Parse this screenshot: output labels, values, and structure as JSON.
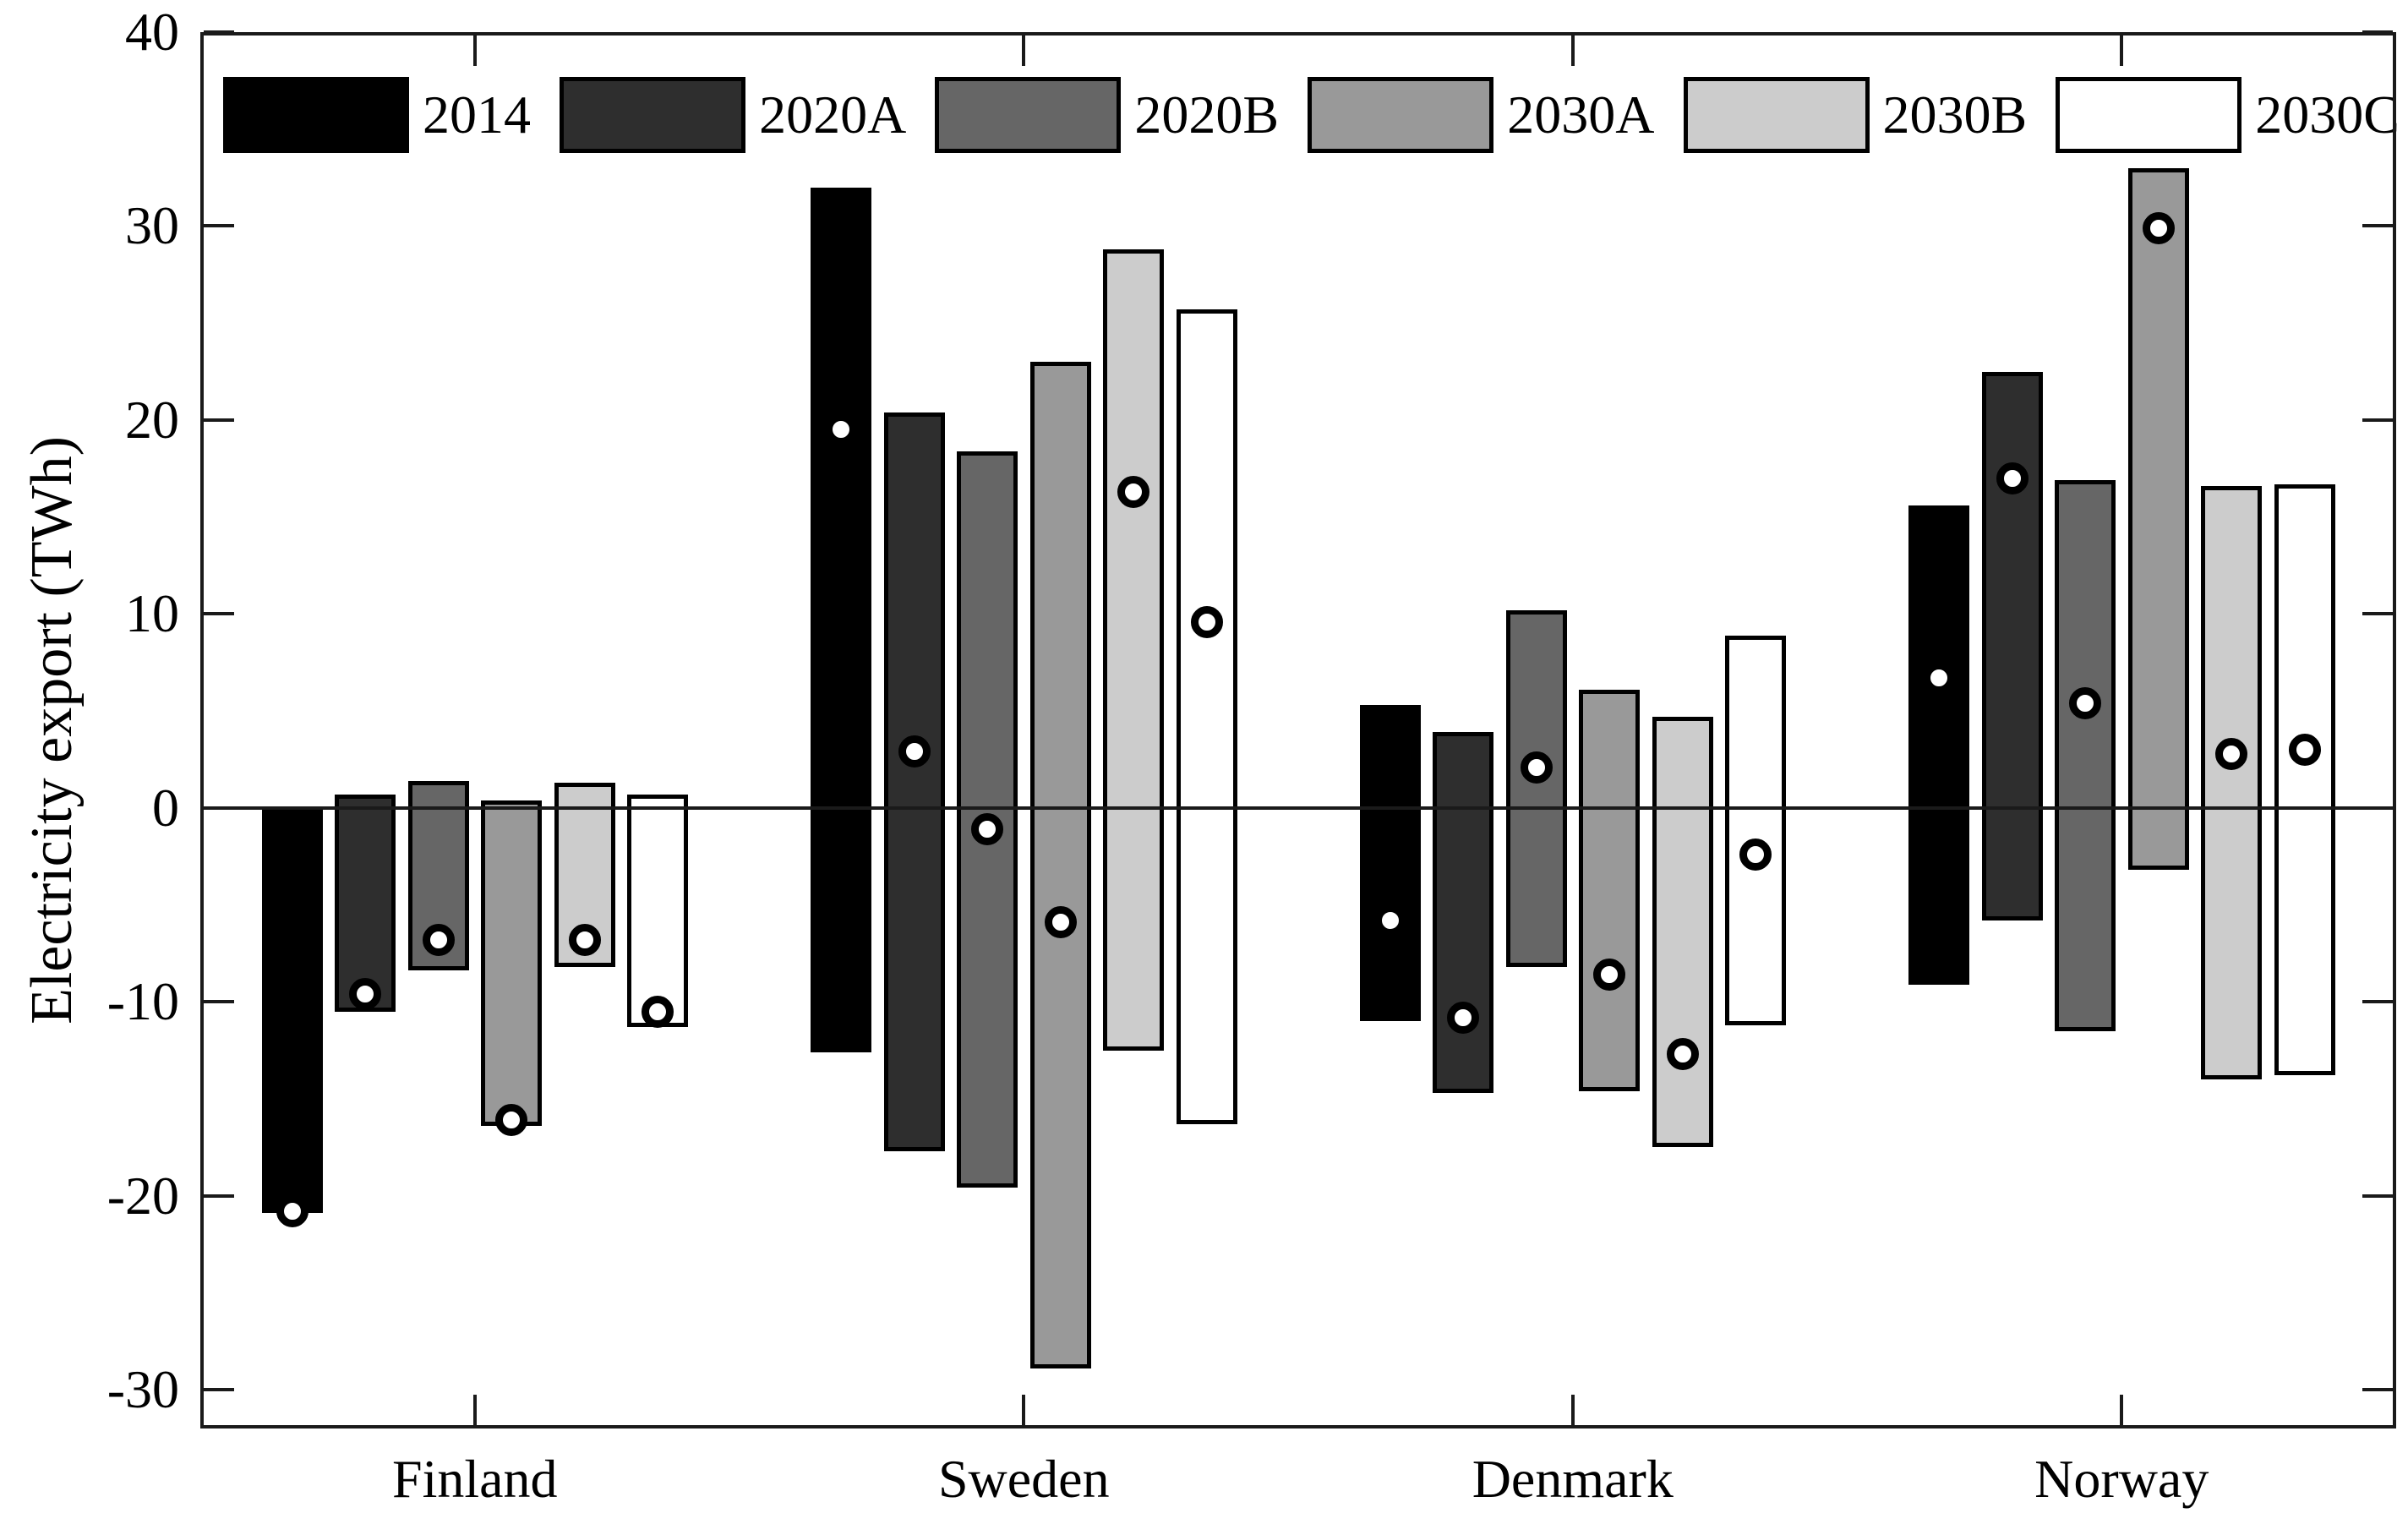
{
  "chart_data": {
    "type": "bar",
    "subtype": "floating-range-bars-with-point-markers",
    "title": "",
    "xlabel": "",
    "ylabel": "Electricity export (TWh)",
    "categories": [
      "Finland",
      "Sweden",
      "Denmark",
      "Norway"
    ],
    "y_tick_labels": [
      "40",
      "30",
      "20",
      "10",
      "0",
      "-10",
      "-20",
      "-30"
    ],
    "y_tick_values": [
      40,
      30,
      20,
      10,
      0,
      -10,
      -20,
      -30
    ],
    "ylim": [
      -32,
      40
    ],
    "grid": false,
    "legend_position": "top-inside",
    "marker_style": "white-circle-black-ring",
    "series": [
      {
        "name": "2014",
        "color": "#000000",
        "ranges": [
          [
            -20.9,
            0.0
          ],
          [
            -12.6,
            32.0
          ],
          [
            -11.0,
            5.3
          ],
          [
            -9.1,
            15.6
          ]
        ],
        "markers": [
          -20.8,
          19.5,
          -5.8,
          6.7
        ]
      },
      {
        "name": "2020A",
        "color": "#2e2e2e",
        "ranges": [
          [
            -10.5,
            0.7
          ],
          [
            -17.7,
            20.4
          ],
          [
            -14.7,
            3.9
          ],
          [
            -5.8,
            22.5
          ]
        ],
        "markers": [
          -9.6,
          2.9,
          -10.8,
          17.0
        ]
      },
      {
        "name": "2020B",
        "color": "#666666",
        "ranges": [
          [
            -8.4,
            1.4
          ],
          [
            -19.6,
            18.4
          ],
          [
            -8.2,
            10.2
          ],
          [
            -11.5,
            16.9
          ]
        ],
        "markers": [
          -6.8,
          -1.1,
          2.1,
          5.4
        ]
      },
      {
        "name": "2030A",
        "color": "#999999",
        "ranges": [
          [
            -16.4,
            0.4
          ],
          [
            -28.9,
            23.0
          ],
          [
            -14.6,
            6.1
          ],
          [
            -3.2,
            33.0
          ]
        ],
        "markers": [
          -16.1,
          -5.9,
          -8.6,
          29.9
        ]
      },
      {
        "name": "2030B",
        "color": "#cccccc",
        "ranges": [
          [
            -8.2,
            1.3
          ],
          [
            -12.5,
            28.8
          ],
          [
            -17.5,
            4.7
          ],
          [
            -14.0,
            16.6
          ]
        ],
        "markers": [
          -6.8,
          16.3,
          -12.7,
          2.8
        ]
      },
      {
        "name": "2030C",
        "color": "#ffffff",
        "ranges": [
          [
            -11.3,
            0.7
          ],
          [
            -16.3,
            25.7
          ],
          [
            -11.2,
            8.9
          ],
          [
            -13.8,
            16.7
          ]
        ],
        "markers": [
          -10.5,
          9.6,
          -2.4,
          3.0
        ]
      }
    ]
  }
}
